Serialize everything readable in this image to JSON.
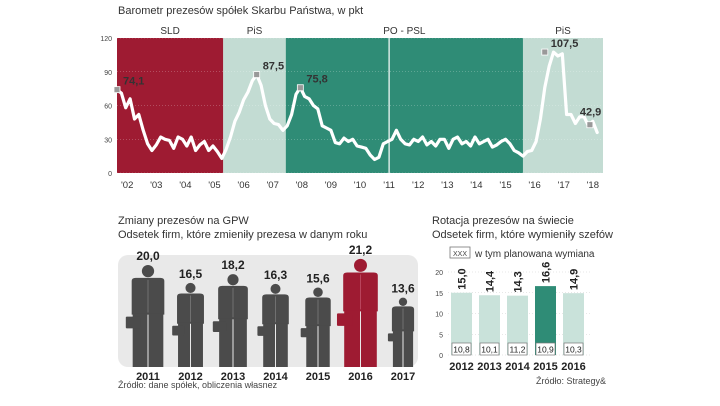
{
  "colors": {
    "sld": "#9e1b32",
    "pis": "#c3dcd3",
    "popsl": "#2f8c76",
    "line": "#ffffff",
    "grid": "#cfcfcf",
    "figure_dark": "#4b4b4b",
    "figure_red": "#9e1b32",
    "figure_band": "#e9e9e9",
    "bar_light": "#c9e2da",
    "bar_green": "#2f8c76"
  },
  "chart_data": [
    {
      "type": "line",
      "title": "Barometr prezesów spółek Skarbu Państwa, w pkt",
      "ylim": [
        0,
        120
      ],
      "yticks": [
        "0",
        "30",
        "60",
        "90",
        "120"
      ],
      "xlim": [
        2001.65,
        2018.35
      ],
      "xticks": [
        {
          "x": 2002,
          "label": "'02"
        },
        {
          "x": 2003,
          "label": "'03"
        },
        {
          "x": 2004,
          "label": "'04"
        },
        {
          "x": 2005,
          "label": "'05"
        },
        {
          "x": 2006,
          "label": "'06"
        },
        {
          "x": 2007,
          "label": "'07"
        },
        {
          "x": 2008,
          "label": "'08"
        },
        {
          "x": 2009,
          "label": "'09"
        },
        {
          "x": 2010,
          "label": "'10"
        },
        {
          "x": 2011,
          "label": "'11"
        },
        {
          "x": 2012,
          "label": "'12"
        },
        {
          "x": 2013,
          "label": "'13"
        },
        {
          "x": 2014,
          "label": "'14"
        },
        {
          "x": 2015,
          "label": "'15"
        },
        {
          "x": 2016,
          "label": "'16"
        },
        {
          "x": 2017,
          "label": "'17"
        },
        {
          "x": 2018,
          "label": "'18"
        }
      ],
      "periods": [
        {
          "label": "SLD",
          "start": 2001.65,
          "end": 2005.3,
          "color": "#9e1b32"
        },
        {
          "label": "PiS",
          "start": 2005.3,
          "end": 2007.45,
          "color": "#c3dcd3"
        },
        {
          "label": "PO - PSL",
          "start": 2007.45,
          "end": 2015.6,
          "color": "#2f8c76"
        },
        {
          "label": "PiS",
          "start": 2015.6,
          "end": 2018.35,
          "color": "#c3dcd3"
        }
      ],
      "dividers": [
        2011
      ],
      "series": [
        {
          "x": [
            2001.65,
            2001.8,
            2001.95,
            2002.1,
            2002.25,
            2002.4,
            2002.55,
            2002.7,
            2002.85,
            2003.0,
            2003.15,
            2003.3,
            2003.45,
            2003.6,
            2003.75,
            2003.9,
            2004.05,
            2004.2,
            2004.35,
            2004.5,
            2004.65,
            2004.8,
            2004.95,
            2005.1,
            2005.25,
            2005.4,
            2005.55,
            2005.7,
            2005.85,
            2006.0,
            2006.15,
            2006.3,
            2006.45,
            2006.6,
            2006.75,
            2006.9,
            2007.05,
            2007.2,
            2007.35,
            2007.5,
            2007.65,
            2007.8,
            2007.95,
            2008.1,
            2008.25,
            2008.4,
            2008.55,
            2008.7,
            2008.85,
            2009.0,
            2009.15,
            2009.3,
            2009.45,
            2009.6,
            2009.75,
            2009.9,
            2010.05,
            2010.2,
            2010.35,
            2010.5,
            2010.65,
            2010.8,
            2010.95,
            2011.1,
            2011.25,
            2011.4,
            2011.55,
            2011.7,
            2011.85,
            2012.0,
            2012.15,
            2012.3,
            2012.45,
            2012.6,
            2012.75,
            2012.9,
            2013.05,
            2013.2,
            2013.35,
            2013.5,
            2013.65,
            2013.8,
            2013.95,
            2014.1,
            2014.25,
            2014.4,
            2014.55,
            2014.7,
            2014.85,
            2015.0,
            2015.15,
            2015.3,
            2015.45,
            2015.6,
            2015.75,
            2015.9,
            2016.05,
            2016.2,
            2016.35,
            2016.5,
            2016.65,
            2016.8,
            2016.95,
            2017.1,
            2017.25,
            2017.4,
            2017.55,
            2017.7,
            2017.85,
            2018.0,
            2018.15
          ],
          "y": [
            74,
            71,
            58,
            66,
            48,
            52,
            38,
            26,
            20,
            25,
            32,
            30,
            29,
            22,
            32,
            30,
            24,
            32,
            20,
            25,
            28,
            20,
            24,
            19,
            13,
            21,
            32,
            46,
            54,
            65,
            72,
            82,
            87.5,
            78,
            60,
            48,
            44,
            43,
            38,
            42,
            52,
            70,
            76,
            68,
            66,
            60,
            57,
            42,
            40,
            38,
            27,
            26,
            31,
            28,
            30,
            24,
            23,
            22,
            16,
            12,
            14,
            26,
            28,
            30,
            38,
            30,
            26,
            25,
            30,
            28,
            32,
            25,
            28,
            24,
            30,
            30,
            22,
            30,
            32,
            26,
            28,
            24,
            32,
            26,
            28,
            30,
            23,
            25,
            28,
            30,
            26,
            20,
            18,
            15,
            19,
            20,
            28,
            48,
            76,
            95,
            107.5,
            104,
            106,
            52,
            52,
            44,
            50,
            50,
            42,
            46,
            36
          ]
        }
      ],
      "annotations": [
        {
          "x": 2001.65,
          "y": 74.1,
          "label": "74,1"
        },
        {
          "x": 2006.45,
          "y": 87.5,
          "label": "87,5"
        },
        {
          "x": 2007.95,
          "y": 75.8,
          "label": "75,8"
        },
        {
          "x": 2016.35,
          "y": 107.5,
          "label": "107,5"
        },
        {
          "x": 2017.9,
          "y": 42.9,
          "label": "42,9"
        }
      ]
    },
    {
      "type": "bar",
      "title": "Zmiany prezesów na GPW",
      "subtitle": "Odsetek firm, które zmieniły prezesa w danym roku",
      "categories": [
        "2011",
        "2012",
        "2013",
        "2014",
        "2015",
        "2016",
        "2017"
      ],
      "values": [
        20.0,
        16.5,
        18.2,
        16.3,
        15.6,
        21.2,
        13.6
      ],
      "value_labels": [
        "20,0",
        "16,5",
        "18,2",
        "16,3",
        "15,6",
        "21,2",
        "13,6"
      ],
      "highlight": "2016",
      "source": "Źródło: dane spółek, obliczenia własnez"
    },
    {
      "type": "bar",
      "title": "Rotacja prezesów na świecie",
      "subtitle": "Odsetek firm, które wymieniły szefów",
      "legend": {
        "swatch": "XXX",
        "label": "w tym planowana wymiana"
      },
      "ylim": [
        0,
        20
      ],
      "yticks": [
        "0",
        "5",
        "10",
        "15",
        "20"
      ],
      "categories": [
        "2012",
        "2013",
        "2014",
        "2015",
        "2016"
      ],
      "values": [
        15.0,
        14.4,
        14.3,
        16.6,
        14.9
      ],
      "value_labels": [
        "15,0",
        "14,4",
        "14,3",
        "16,6",
        "14,9"
      ],
      "planned_labels": [
        "10,8",
        "10,1",
        "11,2",
        "10,9",
        "10,3"
      ],
      "highlight": "2015",
      "source": "Źródło: Strategy&"
    }
  ]
}
